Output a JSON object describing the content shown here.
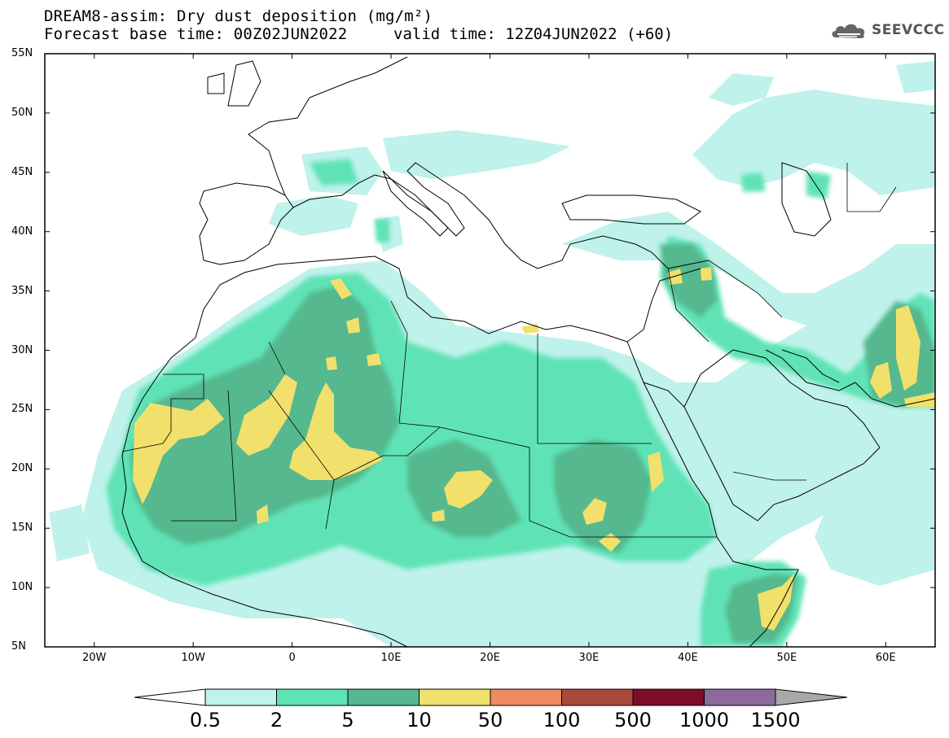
{
  "title": {
    "line1": "DREAM8-assim: Dry dust deposition (mg/m²)",
    "line2": "Forecast base time: 00Z02JUN2022",
    "valid": "valid time: 12Z04JUN2022 (+60)"
  },
  "logo": {
    "text": "SEEVCCC",
    "icon": "cloud-icon"
  },
  "map": {
    "lon_range": [
      -25,
      65
    ],
    "lat_range": [
      5,
      55
    ],
    "lat_ticks": [
      "55N",
      "50N",
      "45N",
      "40N",
      "35N",
      "30N",
      "25N",
      "20N",
      "15N",
      "10N",
      "5N"
    ],
    "lat_values": [
      55,
      50,
      45,
      40,
      35,
      30,
      25,
      20,
      15,
      10,
      5
    ],
    "lon_ticks": [
      "20W",
      "10W",
      "0",
      "10E",
      "20E",
      "30E",
      "40E",
      "50E",
      "60E"
    ],
    "lon_values": [
      -20,
      -10,
      0,
      10,
      20,
      30,
      40,
      50,
      60
    ]
  },
  "colorbar": {
    "labels": [
      "0.5",
      "2",
      "5",
      "10",
      "50",
      "100",
      "500",
      "1000",
      "1500"
    ],
    "colors": [
      "#bff2ea",
      "#5ee3b6",
      "#55b88e",
      "#f1e06b",
      "#ee8b63",
      "#a9483b",
      "#7c0e2a",
      "#8c6a9c"
    ],
    "under_color": "#ffffff",
    "over_color": "#a8a8a8"
  }
}
